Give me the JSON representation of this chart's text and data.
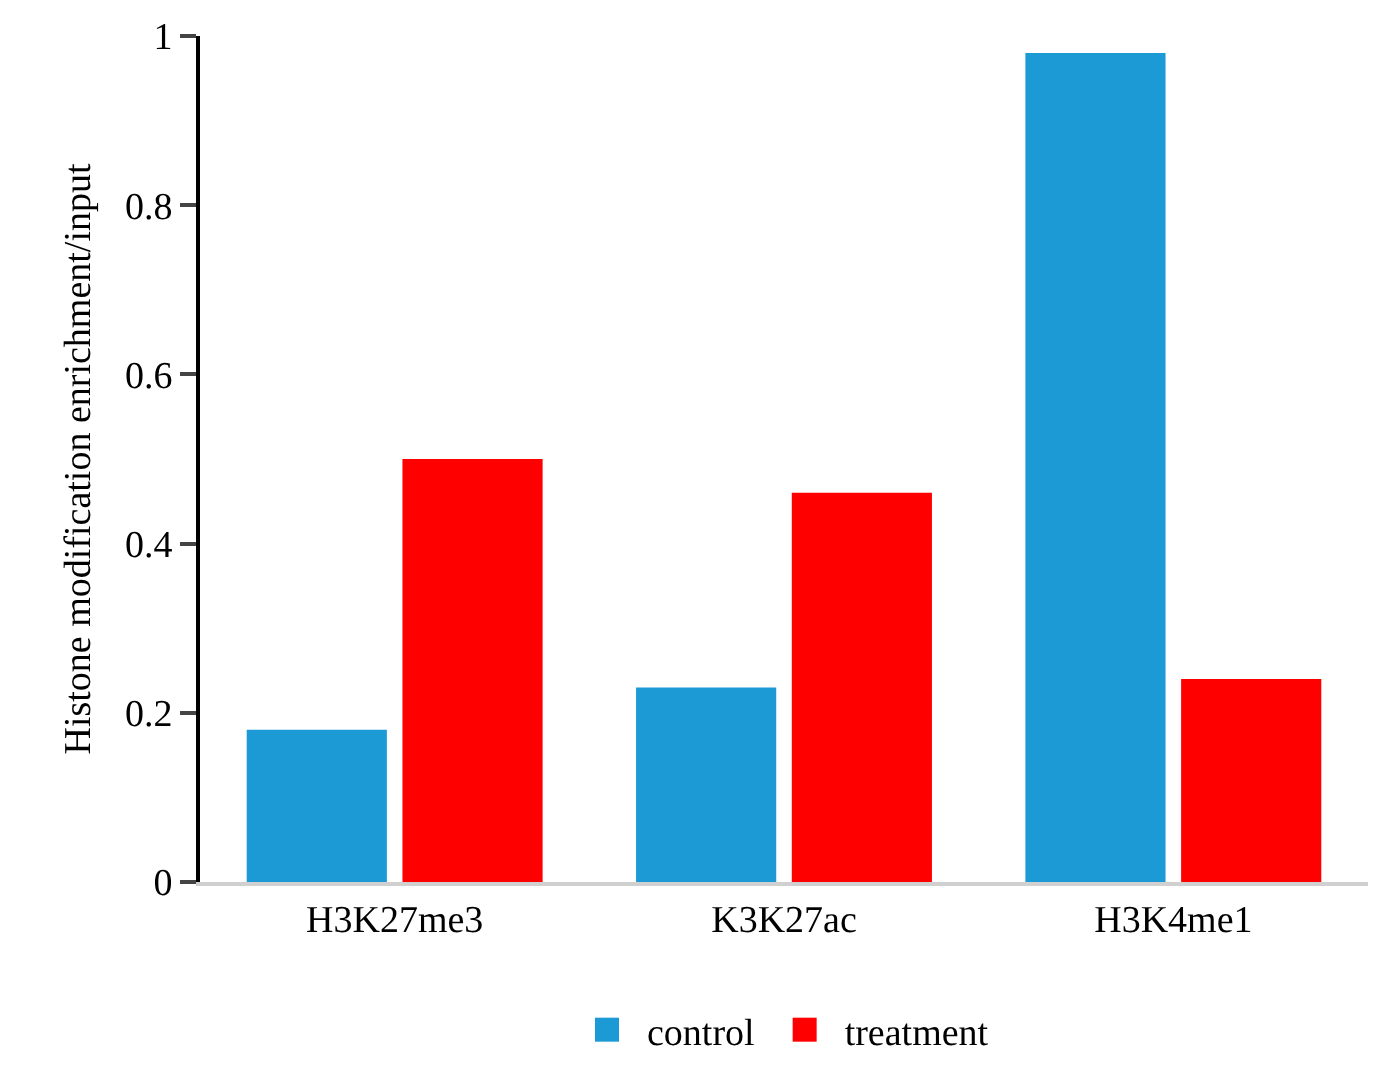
{
  "chart_data": {
    "type": "bar",
    "ylabel": "Histone modification enrichment/input",
    "categories": [
      "H3K27me3",
      "K3K27ac",
      "H3K4me1"
    ],
    "series": [
      {
        "name": "control",
        "color": "#1c9ad6",
        "values": [
          0.18,
          0.23,
          0.98
        ]
      },
      {
        "name": "treatment",
        "color": "#ff0000",
        "values": [
          0.5,
          0.46,
          0.24
        ]
      }
    ],
    "ylim": [
      0,
      1
    ],
    "yticks": [
      0,
      0.2,
      0.4,
      0.6,
      0.8,
      1
    ],
    "grid": false,
    "legend": "bottom"
  }
}
